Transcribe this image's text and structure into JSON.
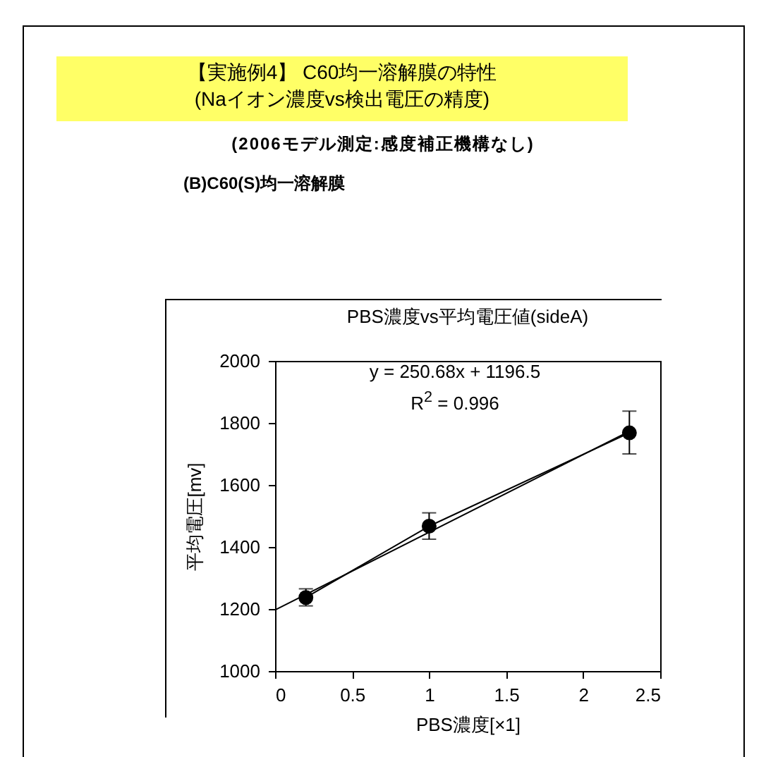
{
  "chart_data": {
    "type": "line",
    "title": "PBS濃度vs平均電圧値(sideA)",
    "xlabel": "PBS濃度[×1]",
    "ylabel": "平均電圧[mv]",
    "annotations": [
      "【実施例4】 C60均一溶解膜の特性",
      "(Naイオン濃度vs検出電圧の精度)",
      "(2006モデル測定:感度補正機構なし)",
      "(B)C60(S)均一溶解膜",
      "y = 250.68x + 1196.5",
      "R$^{2}$ = 0.996"
    ],
    "series": [
      {
        "type": "line",
        "color": "#000000",
        "marker": "circle",
        "x": [
          0.2,
          1,
          2.3
        ],
        "values": [
          1237,
          1467,
          1768
        ],
        "errors": [
          [
            1210,
            1265
          ],
          [
            1425,
            1510
          ],
          [
            1700,
            1838
          ]
        ]
      },
      {
        "type": "line",
        "color": "#000000",
        "marker": "none",
        "x": [
          0,
          2.3
        ],
        "values": [
          1197,
          1773
        ]
      }
    ],
    "xlim": [
      0,
      2.5
    ],
    "xticks": [
      0,
      0.5,
      1,
      1.5,
      2,
      2.5
    ],
    "ylim": [
      1000,
      2000
    ],
    "yticks": [
      1000,
      1200,
      1400,
      1600,
      1800,
      2000
    ]
  }
}
